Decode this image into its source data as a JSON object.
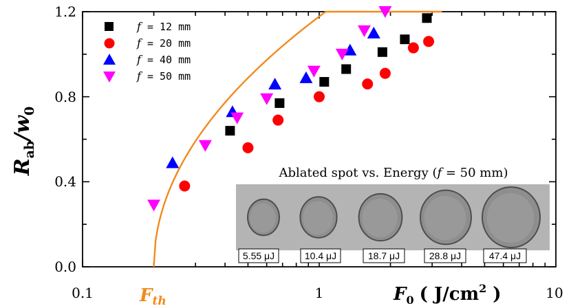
{
  "chart_data": {
    "type": "scatter",
    "x_scale": "log",
    "xlim": [
      0.1,
      10
    ],
    "ylim": [
      0.0,
      1.2
    ],
    "x_ticks": [
      0.1,
      1,
      10
    ],
    "x_tick_labels": [
      "0.1",
      "1",
      "10"
    ],
    "y_ticks": [
      0.0,
      0.4,
      0.8,
      1.2
    ],
    "y_tick_labels": [
      "0.0",
      "0.4",
      "0.8",
      "1.2"
    ],
    "ylabel": {
      "main": "R",
      "sub": "ab",
      "sep": "/",
      "main2": "w",
      "sub2": "0"
    },
    "xlabel": {
      "main": "F",
      "sub": "0",
      "units": "( J/cm",
      "sup": "2",
      "close": " )"
    },
    "threshold_label": {
      "main": "F",
      "sub": "th"
    },
    "series": [
      {
        "name": "f = 12 mm",
        "legend_prefix": "f",
        "legend_rest": " = 12 mm",
        "marker": "square",
        "color": "#000000",
        "points": [
          [
            0.42,
            0.64
          ],
          [
            0.68,
            0.77
          ],
          [
            1.05,
            0.87
          ],
          [
            1.3,
            0.93
          ],
          [
            1.85,
            1.01
          ],
          [
            2.3,
            1.07
          ],
          [
            2.85,
            1.17
          ]
        ]
      },
      {
        "name": "f = 20 mm",
        "legend_prefix": "f",
        "legend_rest": " = 20 mm",
        "marker": "circle",
        "color": "#ff0000",
        "points": [
          [
            0.27,
            0.38
          ],
          [
            0.5,
            0.56
          ],
          [
            0.67,
            0.69
          ],
          [
            1.0,
            0.8
          ],
          [
            1.6,
            0.86
          ],
          [
            1.9,
            0.91
          ],
          [
            2.5,
            1.03
          ],
          [
            2.9,
            1.06
          ]
        ]
      },
      {
        "name": "f = 40 mm",
        "legend_prefix": "f",
        "legend_rest": " = 40 mm",
        "marker": "triangle-up",
        "color": "#0000ff",
        "points": [
          [
            0.24,
            0.49
          ],
          [
            0.43,
            0.73
          ],
          [
            0.65,
            0.86
          ],
          [
            0.88,
            0.89
          ],
          [
            1.35,
            1.02
          ],
          [
            1.7,
            1.1
          ]
        ]
      },
      {
        "name": "f = 50 mm",
        "legend_prefix": "f",
        "legend_rest": " = 50 mm",
        "marker": "triangle-down",
        "color": "#ff00ff",
        "points": [
          [
            0.2,
            0.29
          ],
          [
            0.33,
            0.57
          ],
          [
            0.45,
            0.7
          ],
          [
            0.6,
            0.79
          ],
          [
            0.95,
            0.92
          ],
          [
            1.25,
            1.0
          ],
          [
            1.55,
            1.11
          ],
          [
            1.9,
            1.2
          ]
        ]
      }
    ],
    "fit_curve": {
      "color": "#f28a1c",
      "a": 0.415,
      "fth": 0.2,
      "x_max": 3.3
    }
  },
  "inset": {
    "title_prefix": "Ablated spot vs. Energy (",
    "title_f": "f",
    "title_suffix": " = 50 mm)",
    "spots": [
      {
        "label": "5.55 μJ",
        "size": 0.32
      },
      {
        "label": "10.4 μJ",
        "size": 0.45
      },
      {
        "label": "18.7 μJ",
        "size": 0.62
      },
      {
        "label": "28.8 μJ",
        "size": 0.82
      },
      {
        "label": "47.4 μJ",
        "size": 1.0
      }
    ]
  },
  "colors": {
    "fit": "#f28a1c",
    "inset_bg": "#b4b4b4",
    "spot": "#8e8e8e"
  }
}
